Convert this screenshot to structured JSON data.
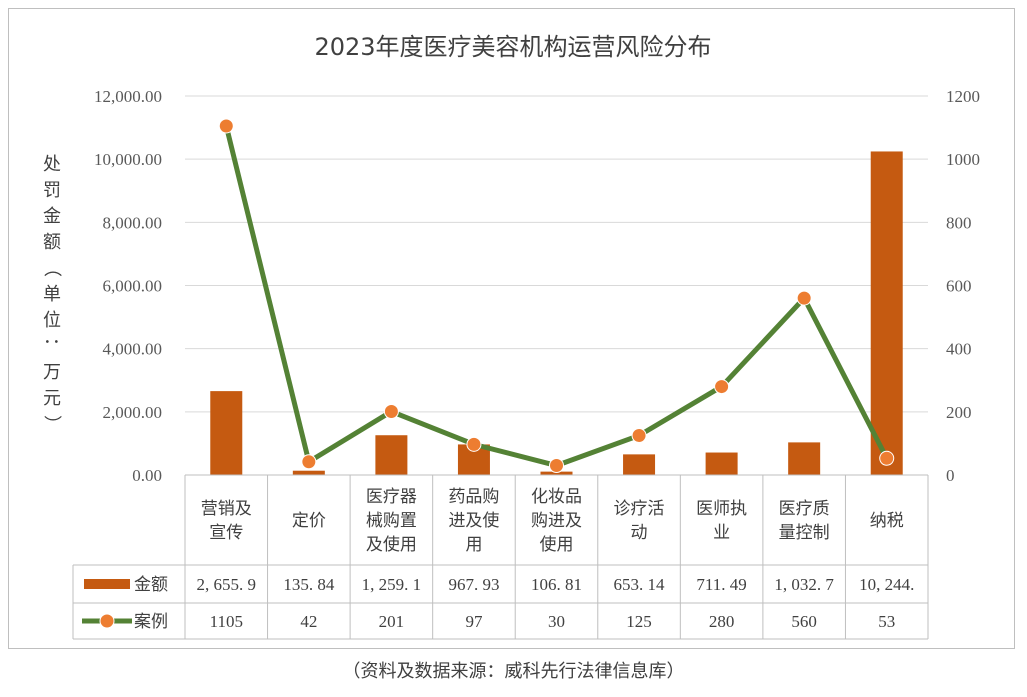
{
  "chart_data": {
    "type": "bar+line",
    "title": "2023年度医疗美容机构运营风险分布",
    "ylabel": "处罚金额（单位：万元）",
    "categories": [
      [
        "营销及",
        "宣传"
      ],
      [
        "定价"
      ],
      [
        "医疗器",
        "械购置",
        "及使用"
      ],
      [
        "药品购",
        "进及使",
        "用"
      ],
      [
        "化妆品",
        "购进及",
        "使用"
      ],
      [
        "诊疗活",
        "动"
      ],
      [
        "医师执",
        "业"
      ],
      [
        "医疗质",
        "量控制"
      ],
      [
        "纳税"
      ]
    ],
    "series": [
      {
        "name": "金额",
        "type": "bar",
        "axis": "left",
        "color": "#c55a11",
        "values": [
          2655.9,
          135.84,
          1259.1,
          967.93,
          106.81,
          653.14,
          711.49,
          1032.7,
          10244
        ],
        "table_labels": [
          "2, 655. 9",
          "135. 84",
          "1, 259. 1",
          "967. 93",
          "106. 81",
          "653. 14",
          "711. 49",
          "1, 032. 7",
          "10, 244."
        ]
      },
      {
        "name": "案例",
        "type": "line",
        "axis": "right",
        "color": "#548235",
        "marker_color": "#ed7d31",
        "values": [
          1105,
          42,
          201,
          97,
          30,
          125,
          280,
          560,
          53
        ],
        "table_labels": [
          "1105",
          "42",
          "201",
          "97",
          "30",
          "125",
          "280",
          "560",
          "53"
        ]
      }
    ],
    "y_left": {
      "min": 0,
      "max": 12000,
      "ticks": [
        "0.00",
        "2,000.00",
        "4,000.00",
        "6,000.00",
        "8,000.00",
        "10,000.00",
        "12,000.00"
      ]
    },
    "y_right": {
      "min": 0,
      "max": 1200,
      "ticks": [
        "0",
        "200",
        "400",
        "600",
        "800",
        "1000",
        "1200"
      ]
    },
    "grid": true,
    "legend": "data-table"
  },
  "source": "（资料及数据来源：威科先行法律信息库）"
}
